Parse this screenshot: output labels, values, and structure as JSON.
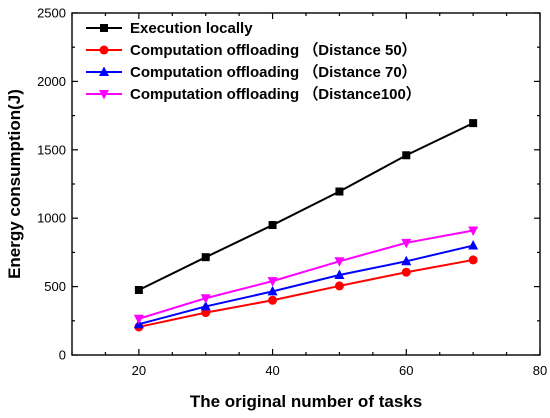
{
  "chart_data": {
    "type": "line",
    "xlabel": "The original number of tasks",
    "ylabel": "Energy consumption(J)",
    "xlim": [
      10,
      80
    ],
    "ylim": [
      0,
      2500
    ],
    "xticks": [
      20,
      40,
      60,
      80
    ],
    "yticks": [
      0,
      500,
      1000,
      1500,
      2000,
      2500
    ],
    "grid": false,
    "legend_position": "top-left",
    "x": [
      20,
      30,
      40,
      50,
      60,
      70
    ],
    "series": [
      {
        "name": "Execution locally",
        "color": "#000000",
        "marker": "square",
        "values": [
          475,
          715,
          950,
          1195,
          1460,
          1695
        ]
      },
      {
        "name": "Computation offloading （Distance 50）",
        "color": "#ff0000",
        "marker": "circle",
        "values": [
          205,
          310,
          400,
          505,
          605,
          695
        ]
      },
      {
        "name": "Computation offloading （Distance 70）",
        "color": "#0000ff",
        "marker": "triangle-up",
        "values": [
          225,
          355,
          465,
          585,
          685,
          800
        ]
      },
      {
        "name": "Computation offloading （Distance100）",
        "color": "#ff00ff",
        "marker": "triangle-down",
        "values": [
          265,
          415,
          540,
          685,
          820,
          910
        ]
      }
    ]
  }
}
